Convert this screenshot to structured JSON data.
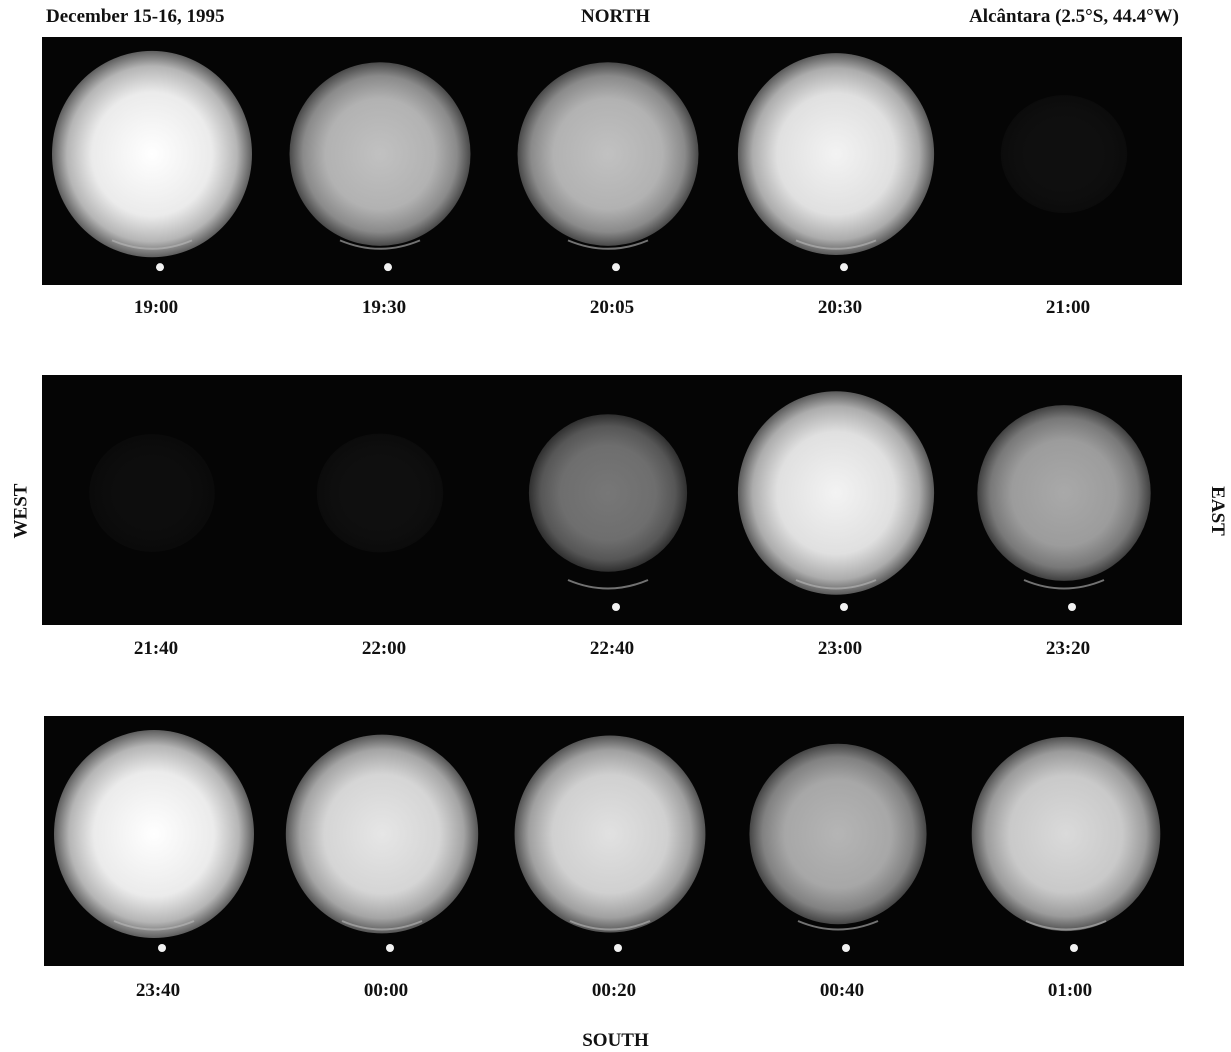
{
  "header": {
    "date": "December 15-16, 1995",
    "north": "NORTH",
    "location": "Alcântara (2.5°S, 44.4°W)"
  },
  "sides": {
    "west": "WEST",
    "east": "EAST",
    "south": "SOUTH"
  },
  "rows": [
    {
      "frames": [
        {
          "time": "19:00",
          "brightness": 1.0
        },
        {
          "time": "19:30",
          "brightness": 0.75
        },
        {
          "time": "20:05",
          "brightness": 0.75
        },
        {
          "time": "20:30",
          "brightness": 0.95
        },
        {
          "time": "21:00",
          "brightness": 0.03
        }
      ]
    },
    {
      "frames": [
        {
          "time": "21:40",
          "brightness": 0.02
        },
        {
          "time": "22:00",
          "brightness": 0.03
        },
        {
          "time": "22:40",
          "brightness": 0.45
        },
        {
          "time": "23:00",
          "brightness": 0.95
        },
        {
          "time": "23:20",
          "brightness": 0.65
        }
      ]
    },
    {
      "frames": [
        {
          "time": "23:40",
          "brightness": 1.0
        },
        {
          "time": "00:00",
          "brightness": 0.9
        },
        {
          "time": "00:20",
          "brightness": 0.88
        },
        {
          "time": "00:40",
          "brightness": 0.7
        },
        {
          "time": "01:00",
          "brightness": 0.85
        }
      ]
    }
  ]
}
